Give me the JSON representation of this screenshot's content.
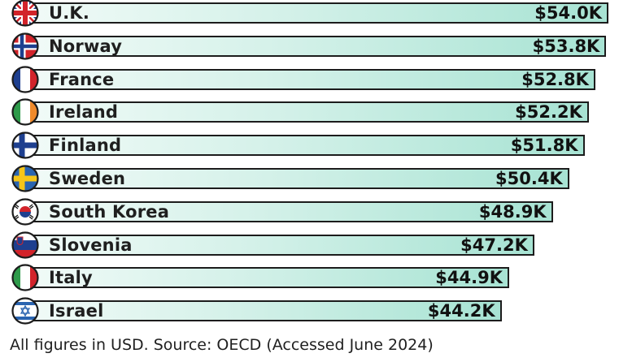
{
  "chart_data": {
    "type": "bar",
    "orientation": "horizontal",
    "categories": [
      "U.K.",
      "Norway",
      "France",
      "Ireland",
      "Finland",
      "Sweden",
      "South Korea",
      "Slovenia",
      "Italy",
      "Israel"
    ],
    "values": [
      54.0,
      53.8,
      52.8,
      52.2,
      51.8,
      50.4,
      48.9,
      47.2,
      44.9,
      44.2
    ],
    "value_labels": [
      "$54.0K",
      "$53.8K",
      "$52.8K",
      "$52.2K",
      "$51.8K",
      "$50.4K",
      "$48.9K",
      "$47.2K",
      "$44.9K",
      "$44.2K"
    ],
    "flags": [
      "uk-flag-icon",
      "norway-flag-icon",
      "france-flag-icon",
      "ireland-flag-icon",
      "finland-flag-icon",
      "sweden-flag-icon",
      "south-korea-flag-icon",
      "slovenia-flag-icon",
      "italy-flag-icon",
      "israel-flag-icon"
    ],
    "colors": {
      "bar_start": "#f2fbf8",
      "bar_end": "#a7e3d3",
      "outline": "#1c1c1c"
    },
    "grid": false
  },
  "footnote": "All figures in USD. Source: OECD (Accessed June 2024)"
}
